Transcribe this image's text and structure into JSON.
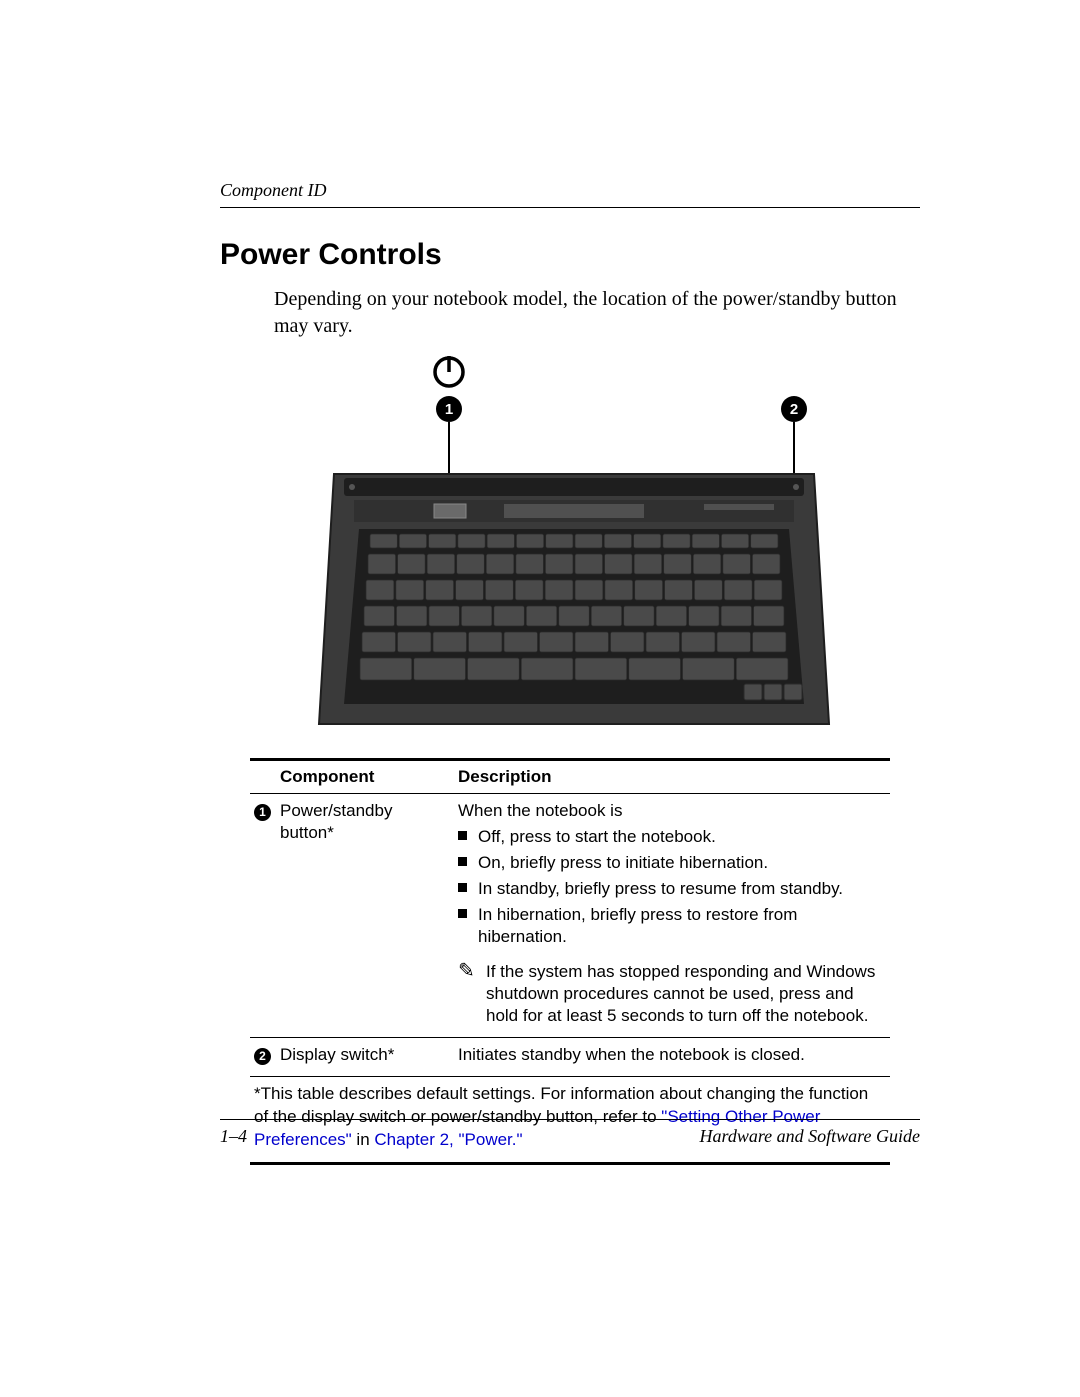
{
  "header": {
    "section": "Component ID"
  },
  "title": "Power Controls",
  "intro": "Depending on your notebook model, the location of the power/standby button may vary.",
  "table": {
    "headers": {
      "component": "Component",
      "description": "Description"
    },
    "rows": [
      {
        "num": "1",
        "component": "Power/standby button*",
        "desc_lead": "When the notebook is",
        "bullets": [
          "Off, press to start the notebook.",
          "On, briefly press to initiate hibernation.",
          "In standby, briefly press to resume from standby.",
          "In hibernation, briefly press to restore from hibernation."
        ],
        "note_icon": "✎",
        "note": "If the system has stopped responding and Windows shutdown procedures cannot be used, press and hold for at least 5 seconds to turn off the notebook."
      },
      {
        "num": "2",
        "component": "Display switch*",
        "desc": "Initiates standby when the notebook is closed."
      }
    ],
    "footnote_pre": "*This table describes default settings. For information about changing the function of the display switch or power/standby button, refer to ",
    "footnote_link1": "\"Setting Other Power Preferences\"",
    "footnote_mid": " in ",
    "footnote_link2": "Chapter 2, \"Power.\""
  },
  "figure": {
    "callouts": [
      "1",
      "2"
    ],
    "colors": {
      "body": "#3a3a3a",
      "body_dark": "#1e1e1e",
      "key": "#4a4a4a",
      "key_edge": "#2a2a2a",
      "panel": "#303030",
      "line": "#000000",
      "callout_bg": "#000000",
      "callout_fg": "#ffffff"
    }
  },
  "footer": {
    "page": "1–4",
    "guide": "Hardware and Software Guide"
  }
}
